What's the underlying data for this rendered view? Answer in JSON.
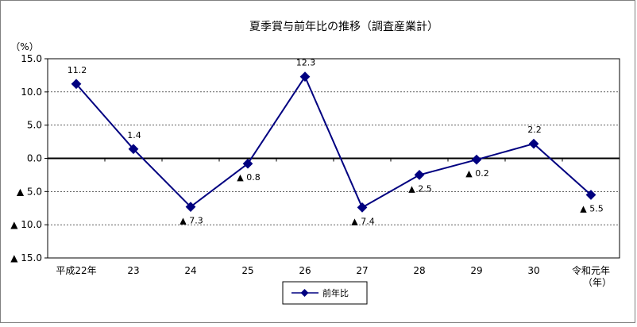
{
  "chart_data": {
    "type": "line",
    "title": "夏季賞与前年比の推移（調査産業計）",
    "ylabel": "（%）",
    "xlabel": "",
    "categories": [
      "平成22年",
      "23",
      "24",
      "25",
      "26",
      "27",
      "28",
      "29",
      "30",
      "令和元年"
    ],
    "category_suffix": "（年）",
    "series": [
      {
        "name": "前年比",
        "values": [
          11.2,
          1.4,
          -7.3,
          -0.8,
          12.3,
          -7.4,
          -2.5,
          -0.2,
          2.2,
          -5.5
        ]
      }
    ],
    "data_labels": [
      "11.2",
      "1.4",
      "▲ 7.3",
      "▲ 0.8",
      "12.3",
      "▲ 7.4",
      "▲ 2.5",
      "▲ 0.2",
      "2.2",
      "▲ 5.5"
    ],
    "yticks": [
      15,
      10,
      5,
      0,
      -5,
      -10,
      -15
    ],
    "ytick_labels": [
      "15.0",
      "10.0",
      "5.0",
      "0.0",
      "▲ 5.0",
      "▲ 10.0",
      "▲ 15.0"
    ],
    "ylim": [
      -15,
      15
    ],
    "grid": "horizontal dashed",
    "legend_position": "bottom-center",
    "colors": {
      "series": "#000080",
      "axis": "#000000",
      "grid": "#000000"
    }
  }
}
